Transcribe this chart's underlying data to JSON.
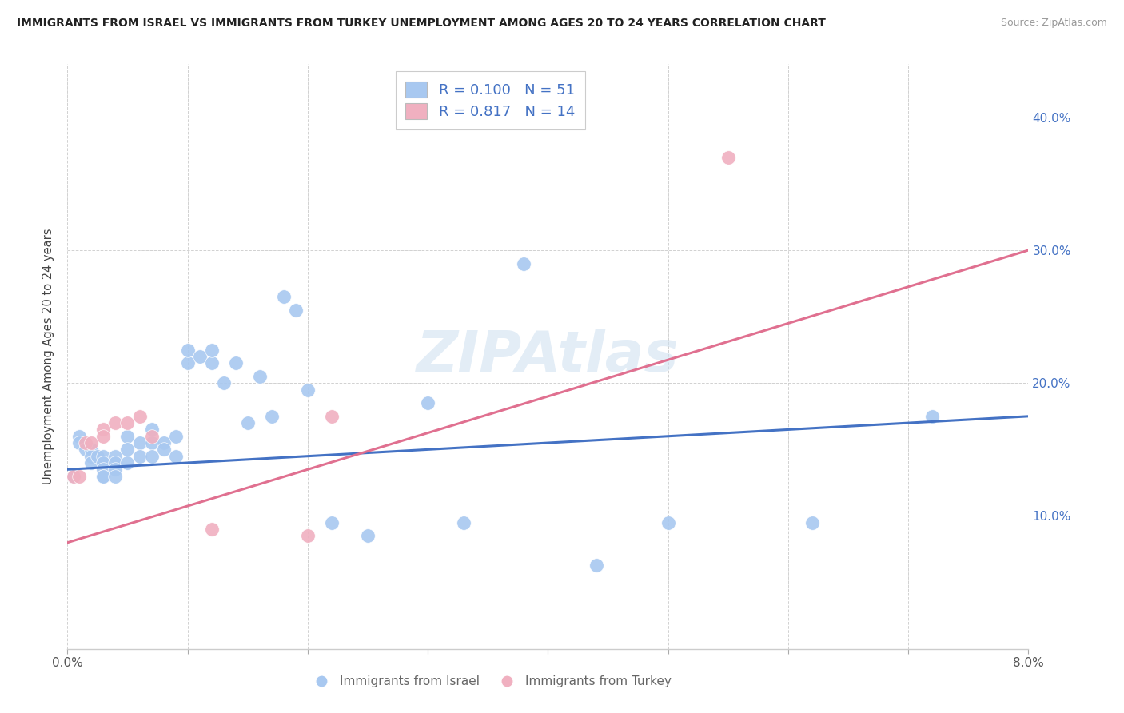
{
  "title": "IMMIGRANTS FROM ISRAEL VS IMMIGRANTS FROM TURKEY UNEMPLOYMENT AMONG AGES 20 TO 24 YEARS CORRELATION CHART",
  "source": "Source: ZipAtlas.com",
  "ylabel": "Unemployment Among Ages 20 to 24 years",
  "xlim": [
    0.0,
    0.08
  ],
  "ylim": [
    0.0,
    0.44
  ],
  "israel_color": "#a8c8f0",
  "turkey_color": "#f0b0c0",
  "israel_line_color": "#4472c4",
  "turkey_line_color": "#e07090",
  "israel_R": "0.100",
  "israel_N": "51",
  "turkey_R": "0.817",
  "turkey_N": "14",
  "watermark": "ZIPAtlas",
  "israel_x": [
    0.0005,
    0.001,
    0.001,
    0.0015,
    0.002,
    0.002,
    0.002,
    0.0025,
    0.003,
    0.003,
    0.003,
    0.003,
    0.003,
    0.004,
    0.004,
    0.004,
    0.004,
    0.005,
    0.005,
    0.005,
    0.006,
    0.006,
    0.007,
    0.007,
    0.007,
    0.008,
    0.008,
    0.009,
    0.009,
    0.01,
    0.01,
    0.011,
    0.012,
    0.012,
    0.013,
    0.014,
    0.015,
    0.016,
    0.017,
    0.018,
    0.019,
    0.02,
    0.022,
    0.025,
    0.03,
    0.033,
    0.038,
    0.044,
    0.05,
    0.062,
    0.072
  ],
  "israel_y": [
    0.13,
    0.16,
    0.155,
    0.15,
    0.15,
    0.145,
    0.14,
    0.145,
    0.145,
    0.14,
    0.135,
    0.13,
    0.13,
    0.145,
    0.14,
    0.135,
    0.13,
    0.16,
    0.15,
    0.14,
    0.155,
    0.145,
    0.165,
    0.155,
    0.145,
    0.155,
    0.15,
    0.16,
    0.145,
    0.215,
    0.225,
    0.22,
    0.215,
    0.225,
    0.2,
    0.215,
    0.17,
    0.205,
    0.175,
    0.265,
    0.255,
    0.195,
    0.095,
    0.085,
    0.185,
    0.095,
    0.29,
    0.063,
    0.095,
    0.095,
    0.175
  ],
  "turkey_x": [
    0.0005,
    0.001,
    0.0015,
    0.002,
    0.003,
    0.003,
    0.004,
    0.005,
    0.006,
    0.007,
    0.012,
    0.02,
    0.022,
    0.055
  ],
  "turkey_y": [
    0.13,
    0.13,
    0.155,
    0.155,
    0.165,
    0.16,
    0.17,
    0.17,
    0.175,
    0.16,
    0.09,
    0.085,
    0.175,
    0.37
  ],
  "israel_trend": [
    0.0,
    0.135,
    0.08,
    0.175
  ],
  "turkey_trend": [
    0.0,
    0.08,
    0.08,
    0.3
  ],
  "x_tick_positions": [
    0.0,
    0.01,
    0.02,
    0.03,
    0.04,
    0.05,
    0.06,
    0.07,
    0.08
  ],
  "y_tick_positions": [
    0.0,
    0.1,
    0.2,
    0.3,
    0.4
  ],
  "y_tick_labels": [
    "",
    "10.0%",
    "20.0%",
    "30.0%",
    "40.0%"
  ],
  "legend_bottom": [
    "Immigrants from Israel",
    "Immigrants from Turkey"
  ],
  "scatter_size": 160
}
